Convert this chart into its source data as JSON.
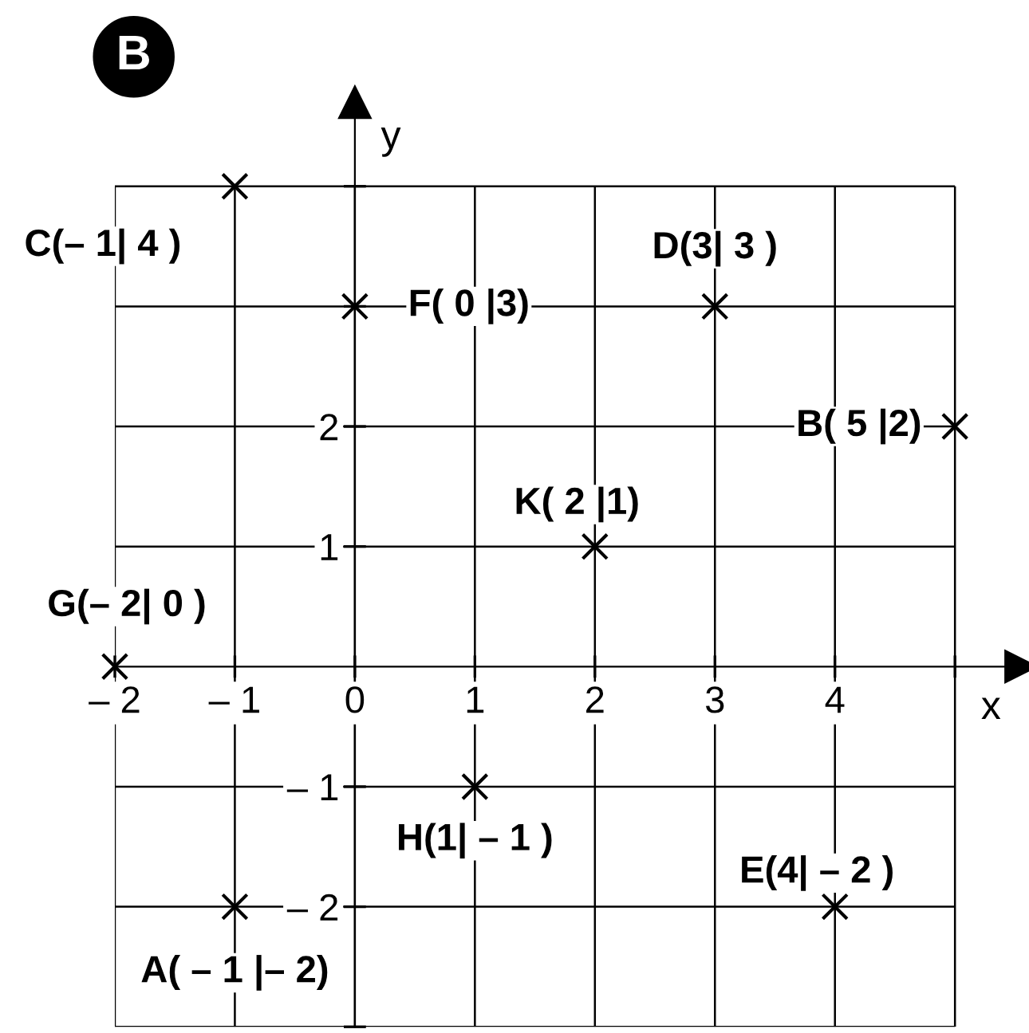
{
  "chart_data": {
    "type": "scatter",
    "title": "B",
    "xlabel": "x",
    "ylabel": "y",
    "x": [
      -1,
      5,
      -1,
      3,
      4,
      0,
      -2,
      1,
      2
    ],
    "series": [
      {
        "color": "#000000",
        "values": [
          -2,
          2,
          4,
          3,
          -2,
          3,
          0,
          -1,
          1
        ]
      }
    ],
    "marker": "cross",
    "grid": true,
    "legend": false,
    "xlim": [
      -2,
      5.55
    ],
    "ylim": [
      -3,
      4.7
    ],
    "xticks": [
      {
        "value": -2,
        "label": "– 2"
      },
      {
        "value": -1,
        "label": "– 1"
      },
      0,
      1,
      2,
      3,
      4,
      {
        "value": 5,
        "label": null
      }
    ],
    "yticks": [
      {
        "value": -3,
        "label": null
      },
      {
        "value": -2,
        "label": "– 2"
      },
      {
        "value": -1,
        "label": "– 1"
      },
      1,
      2,
      {
        "value": 3,
        "label": null
      },
      {
        "value": 4,
        "label": null
      }
    ],
    "annotations": [
      {
        "text": "A( – 1 |– 2)",
        "x": -1,
        "y": -2
      },
      {
        "text": "B( 5 |2)",
        "x": 5,
        "y": 2
      },
      {
        "text": "C(– 1| 4 )",
        "x": -1,
        "y": 4
      },
      {
        "text": "D(3| 3 )",
        "x": 3,
        "y": 3
      },
      {
        "text": "E(4| – 2 )",
        "x": 4,
        "y": -2
      },
      {
        "text": "F( 0 |3)",
        "x": 0,
        "y": 3
      },
      {
        "text": "G(– 2| 0 )",
        "x": -2,
        "y": 0
      },
      {
        "text": "H(1| – 1 )",
        "x": 1,
        "y": -1
      },
      {
        "text": "K( 2 |1)",
        "x": 2,
        "y": 1
      }
    ]
  }
}
